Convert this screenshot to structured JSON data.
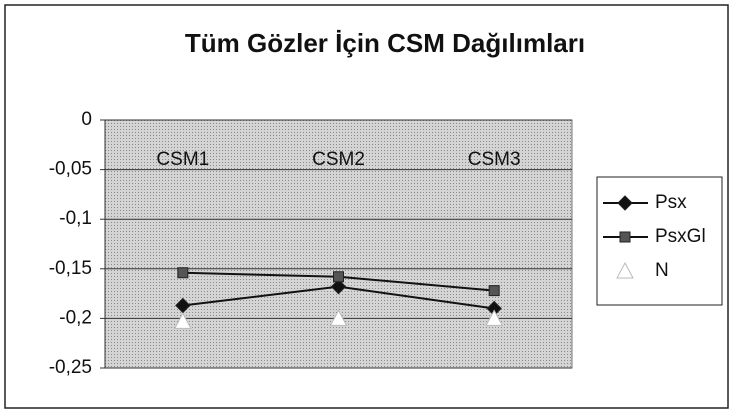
{
  "chart_data": {
    "type": "line",
    "title": "Tüm Gözler İçin CSM Dağılımları",
    "categories": [
      "CSM1",
      "CSM2",
      "CSM3"
    ],
    "series": [
      {
        "name": "Psx",
        "color": "#111111",
        "marker": "diamond",
        "line": true,
        "values": [
          -0.187,
          -0.168,
          -0.19
        ]
      },
      {
        "name": "PsxGl",
        "color": "#333333",
        "marker": "square",
        "line": true,
        "values": [
          -0.154,
          -0.158,
          -0.172
        ]
      },
      {
        "name": "N",
        "color": "#ffffff",
        "marker": "triangle",
        "line": false,
        "values": [
          -0.203,
          -0.2,
          -0.2
        ]
      }
    ],
    "ylim": [
      -0.25,
      0
    ],
    "yticks": [
      {
        "value": 0,
        "label": "0"
      },
      {
        "value": -0.05,
        "label": "-0,05"
      },
      {
        "value": -0.1,
        "label": "-0,1"
      },
      {
        "value": -0.15,
        "label": "-0,15"
      },
      {
        "value": -0.2,
        "label": "-0,2"
      },
      {
        "value": -0.25,
        "label": "-0,25"
      }
    ],
    "grid": true
  }
}
